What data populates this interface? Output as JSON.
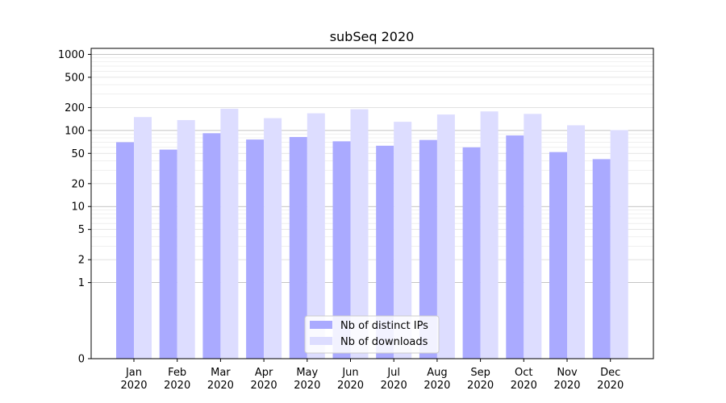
{
  "chart_data": {
    "type": "bar",
    "title": "subSeq 2020",
    "xlabel": "",
    "ylabel": "",
    "y_scale": "symlog",
    "ylim": [
      0,
      1200
    ],
    "y_ticks": [
      0,
      1,
      2,
      5,
      10,
      20,
      50,
      100,
      200,
      500,
      1000
    ],
    "grid": true,
    "legend_position": "lower-center",
    "categories": [
      [
        "Jan",
        "2020"
      ],
      [
        "Feb",
        "2020"
      ],
      [
        "Mar",
        "2020"
      ],
      [
        "Apr",
        "2020"
      ],
      [
        "May",
        "2020"
      ],
      [
        "Jun",
        "2020"
      ],
      [
        "Jul",
        "2020"
      ],
      [
        "Aug",
        "2020"
      ],
      [
        "Sep",
        "2020"
      ],
      [
        "Oct",
        "2020"
      ],
      [
        "Nov",
        "2020"
      ],
      [
        "Dec",
        "2020"
      ]
    ],
    "series": [
      {
        "name": "Nb of distinct IPs",
        "color": "#aaaaff",
        "values": [
          70,
          56,
          92,
          76,
          82,
          72,
          63,
          75,
          60,
          86,
          52,
          42
        ]
      },
      {
        "name": "Nb of downloads",
        "color": "#ddddff",
        "values": [
          150,
          137,
          193,
          145,
          168,
          190,
          130,
          162,
          178,
          165,
          117,
          101
        ]
      }
    ]
  }
}
